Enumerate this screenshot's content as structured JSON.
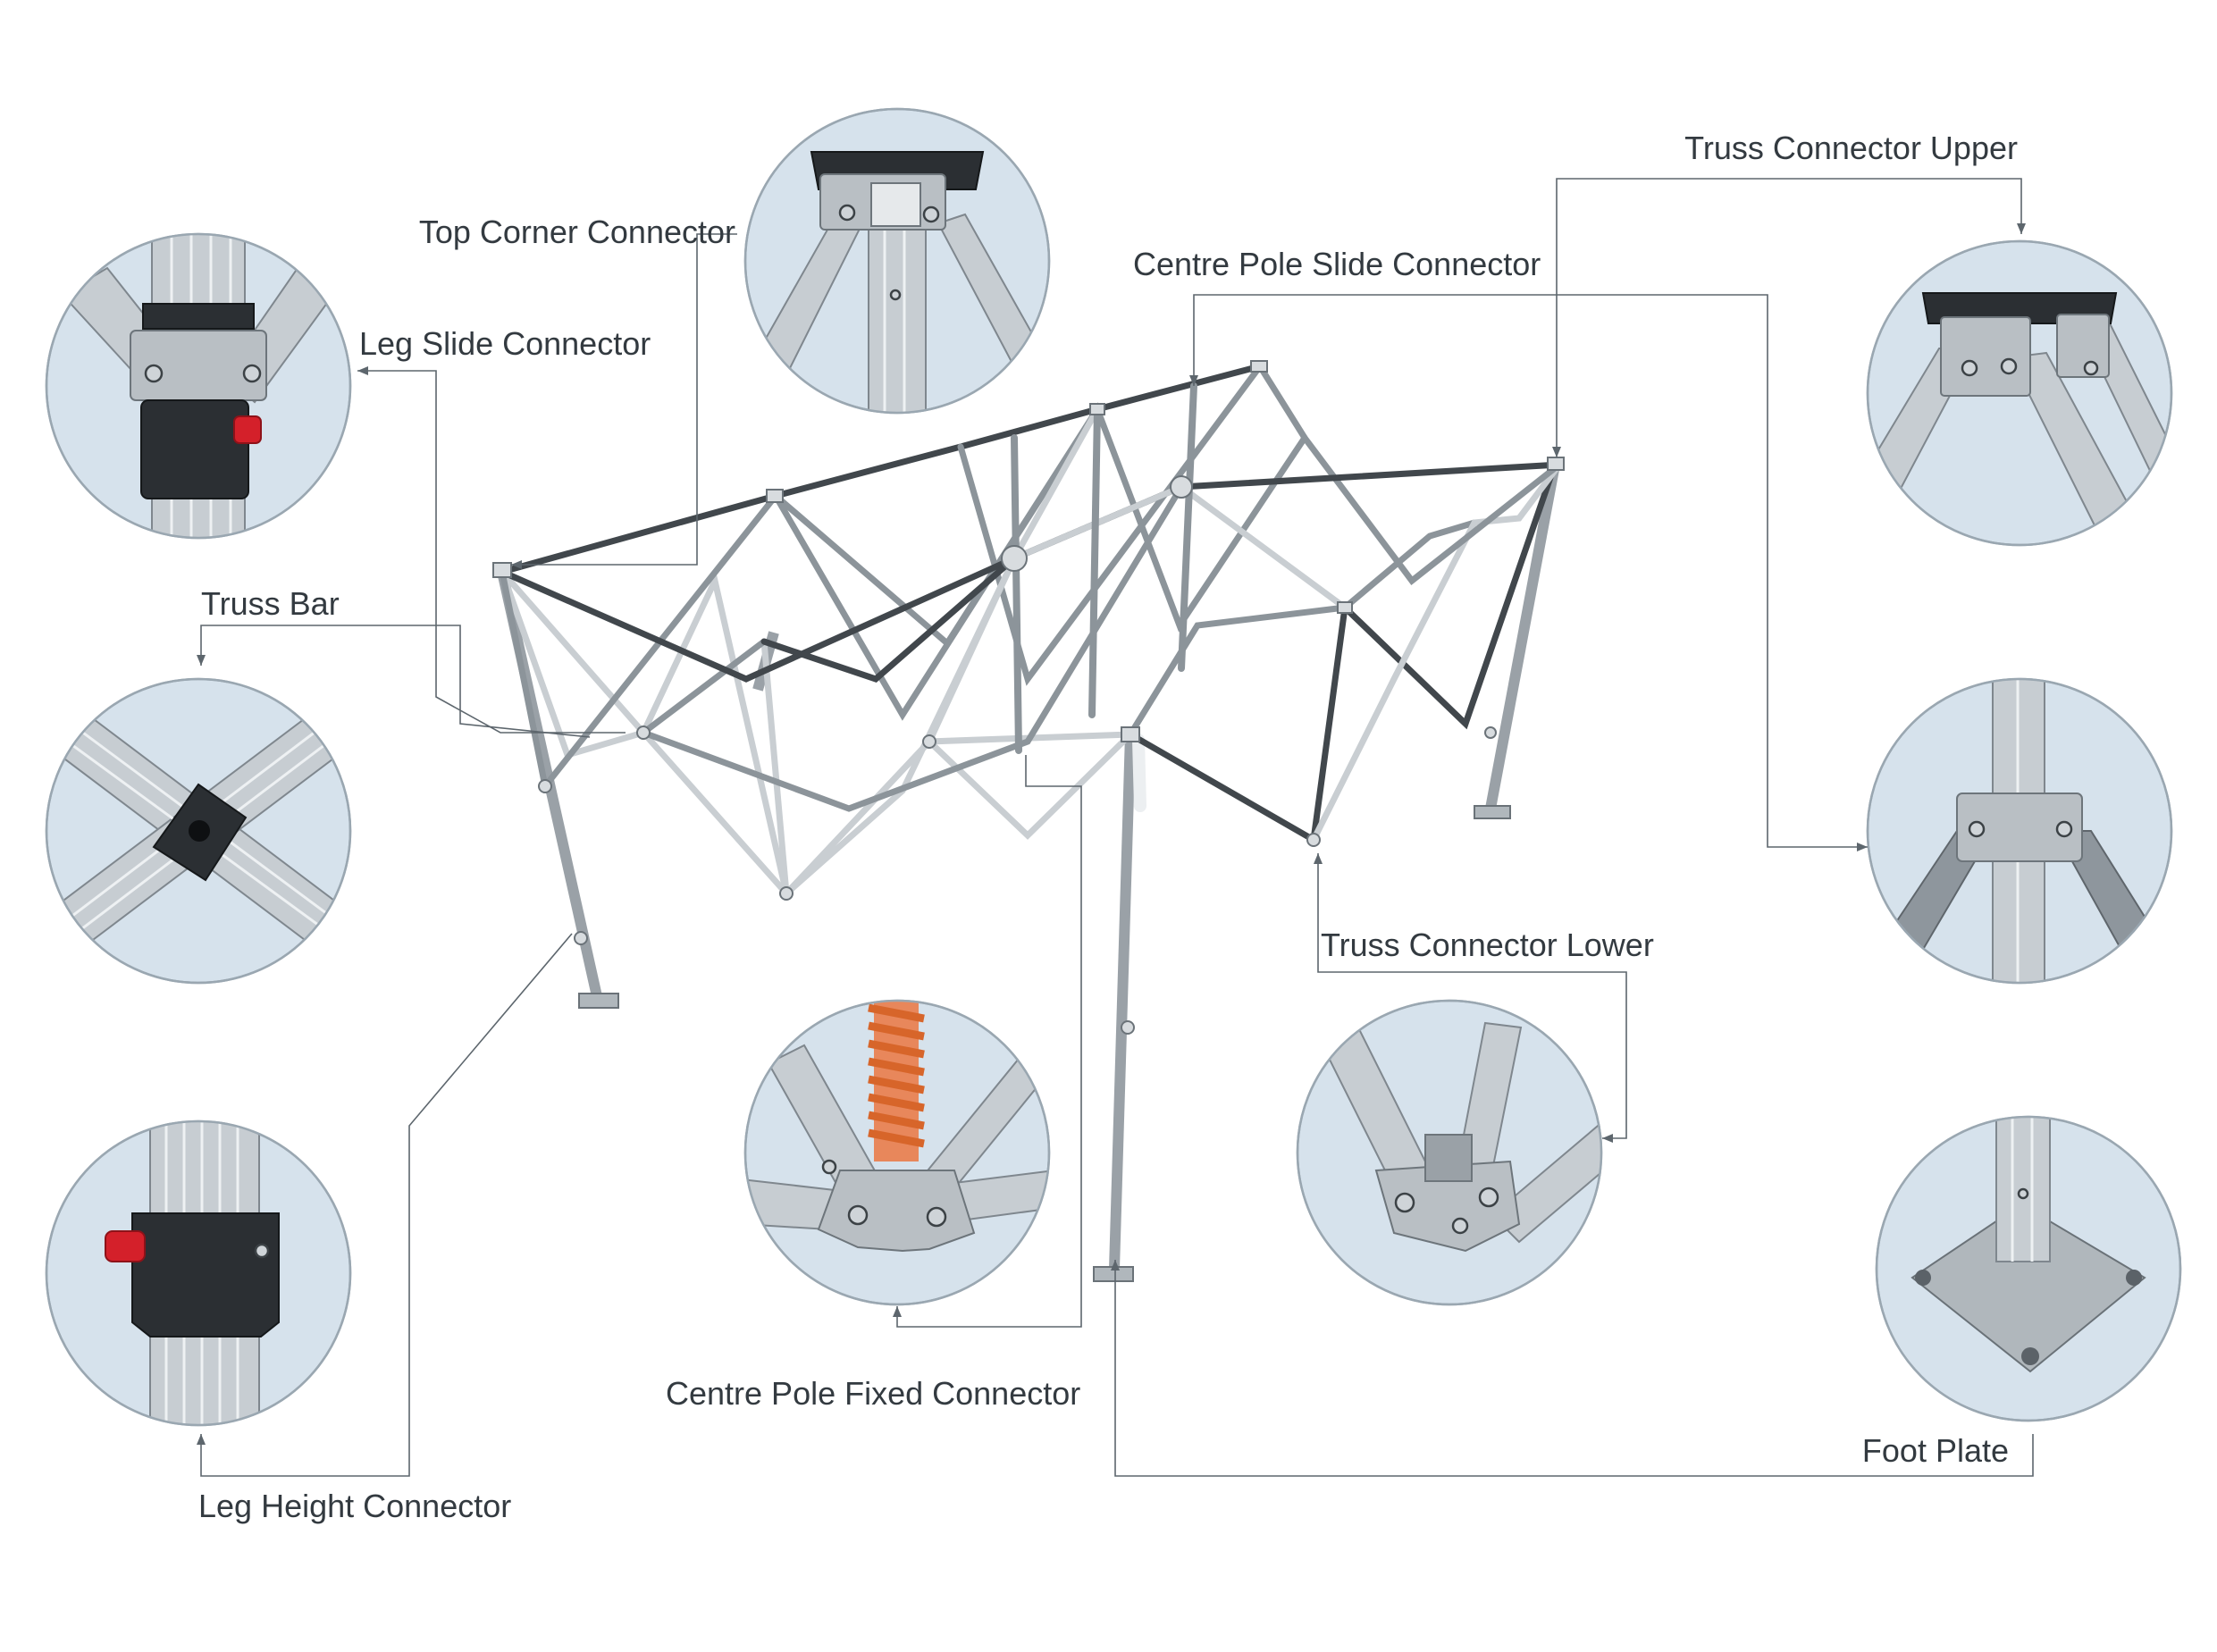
{
  "labels": {
    "top_corner_connector": "Top Corner Connector",
    "leg_slide_connector": "Leg Slide Connector",
    "truss_bar": "Truss Bar",
    "leg_height_connector": "Leg Height Connector",
    "centre_pole_fixed_connector": "Centre Pole Fixed Connector",
    "truss_connector_lower": "Truss Connector Lower",
    "foot_plate": "Foot Plate",
    "truss_connector_upper": "Truss Connector Upper",
    "centre_pole_slide_connector": "Centre Pole Slide Connector"
  },
  "colors": {
    "label_text": "#333a40",
    "leader_line": "#5d666d",
    "circle_background": "#d6e2ec",
    "button_accent": "#d4202a",
    "spring_accent": "#d7652a"
  }
}
